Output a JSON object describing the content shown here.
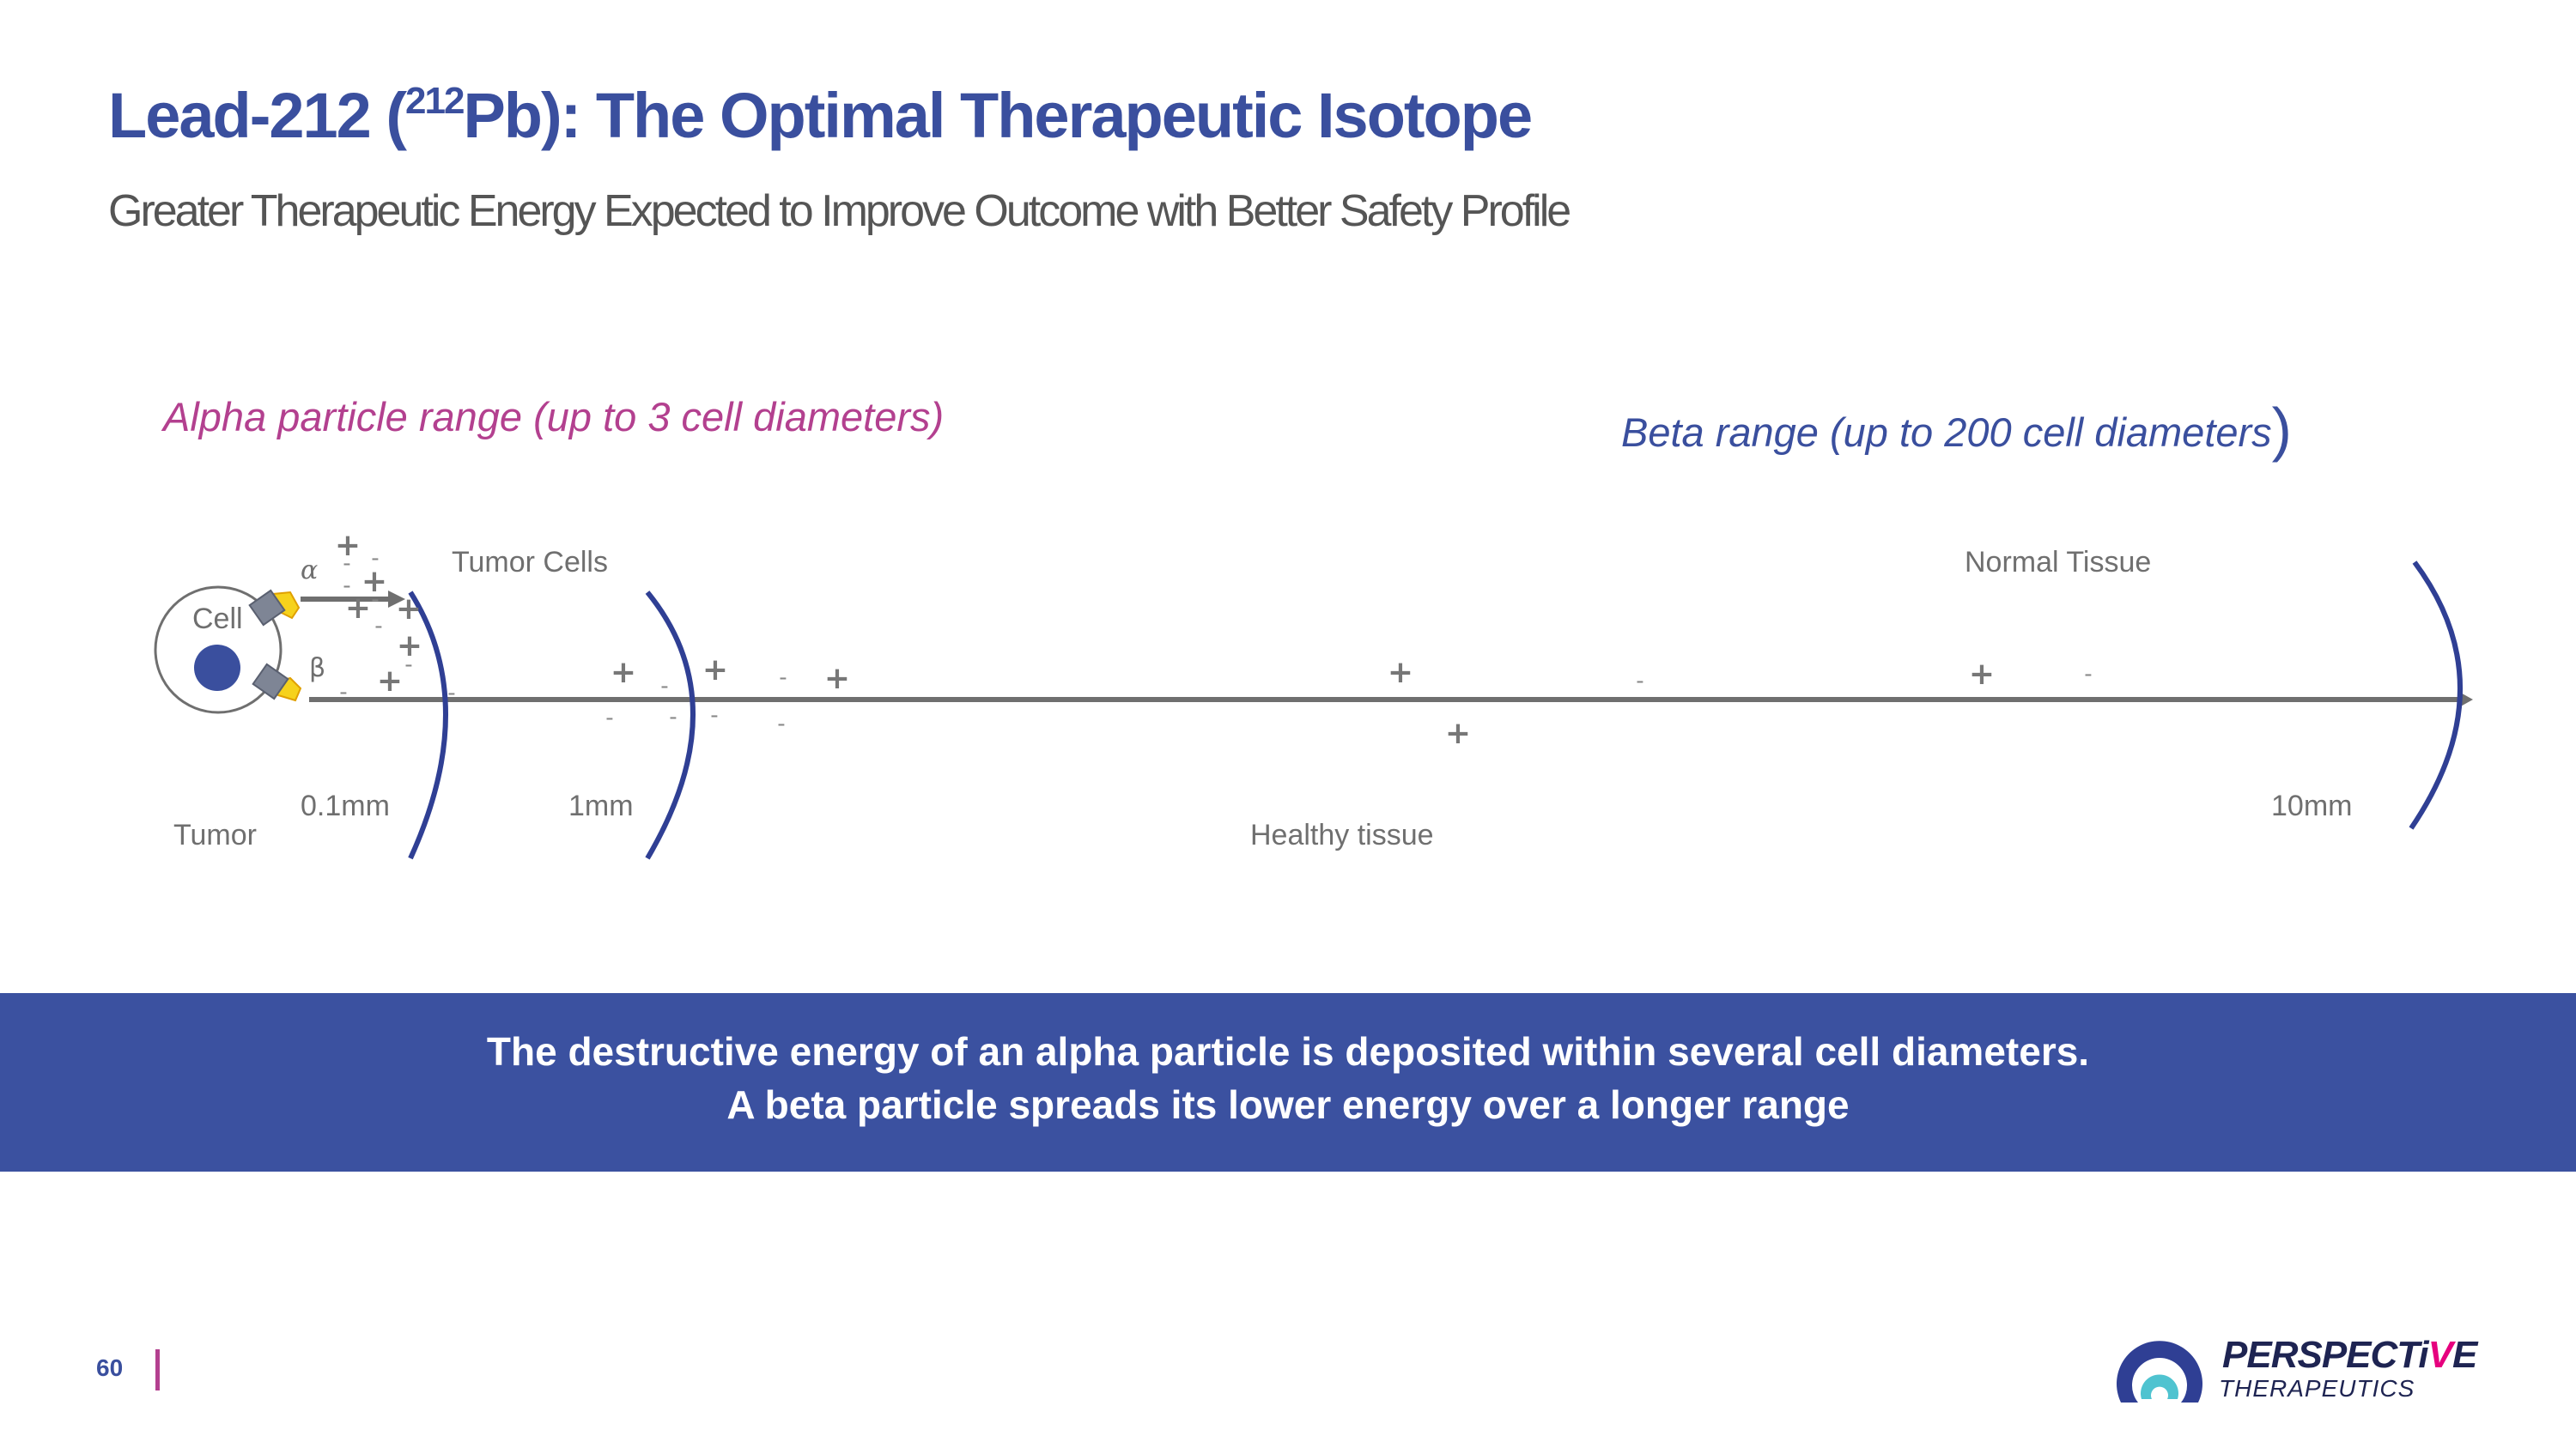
{
  "header": {
    "title_pre": "Lead-212 (",
    "title_sup": "212",
    "title_post": "Pb): The Optimal Therapeutic Isotope",
    "subtitle": "Greater Therapeutic Energy Expected to Improve Outcome with Better Safety Profile"
  },
  "diagram": {
    "alpha_range_label": "Alpha particle range (up to 3 cell diameters)",
    "beta_range_label": "Beta range (up to 200 cell diameters",
    "beta_range_paren": ")",
    "cell_label": "Cell",
    "tumor_label": "Tumor",
    "alpha_symbol": "α",
    "beta_symbol": "β",
    "tumor_cells_label": "Tumor Cells",
    "normal_tissue_label": "Normal Tissue",
    "healthy_tissue_label": "Healthy tissue",
    "distance_labels": [
      "0.1mm",
      "1mm",
      "10mm"
    ],
    "plus_symbol": "+",
    "minus_symbol": "-",
    "colors": {
      "alpha": "#b3408f",
      "beta": "#3a4f9e",
      "arc": "#2f3f94",
      "arrow": "#6f6f6f",
      "nucleus": "#3a4f9e"
    }
  },
  "banner": {
    "line1": "The destructive energy of an alpha particle is deposited within several cell diameters.",
    "line2": "A beta particle spreads its lower energy over a longer range"
  },
  "footer": {
    "page_number": "60",
    "logo_word_pre": "PERSPECTi",
    "logo_word_accent": "V",
    "logo_word_post": "E",
    "logo_sub": "THERAPEUTICS"
  }
}
